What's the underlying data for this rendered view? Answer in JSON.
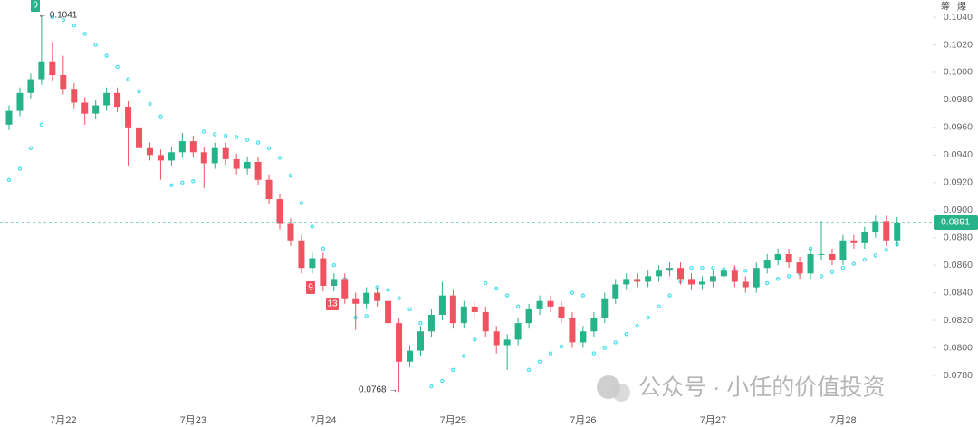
{
  "chart_data": {
    "type": "candlestick",
    "up_color": "#26b38a",
    "down_color": "#ef5360",
    "sar_color": "#4fe0ee",
    "ylim": [
      0.07603,
      0.10525
    ],
    "yticks": [
      {
        "value": 0.104,
        "label": "0.1040"
      },
      {
        "value": 0.102,
        "label": "0.1020"
      },
      {
        "value": 0.1,
        "label": "0.1000"
      },
      {
        "value": 0.098,
        "label": "0.0980"
      },
      {
        "value": 0.096,
        "label": "0.0960"
      },
      {
        "value": 0.094,
        "label": "0.0940"
      },
      {
        "value": 0.092,
        "label": "0.0920"
      },
      {
        "value": 0.09,
        "label": "0.0900"
      },
      {
        "value": 0.088,
        "label": "0.0880"
      },
      {
        "value": 0.086,
        "label": "0.0860"
      },
      {
        "value": 0.084,
        "label": "0.0840"
      },
      {
        "value": 0.082,
        "label": "0.0820"
      },
      {
        "value": 0.08,
        "label": "0.0800"
      },
      {
        "value": 0.078,
        "label": "0.0780"
      }
    ],
    "categories": [
      null,
      null,
      null,
      null,
      null,
      "7月22",
      null,
      null,
      null,
      null,
      null,
      null,
      null,
      null,
      null,
      null,
      null,
      "7月23",
      null,
      null,
      null,
      null,
      null,
      null,
      null,
      null,
      null,
      null,
      null,
      "7月24",
      null,
      null,
      null,
      null,
      null,
      null,
      null,
      null,
      null,
      null,
      null,
      "7月25",
      null,
      null,
      null,
      null,
      null,
      null,
      null,
      null,
      null,
      null,
      null,
      "7月26",
      null,
      null,
      null,
      null,
      null,
      null,
      null,
      null,
      null,
      null,
      null,
      "7月27",
      null,
      null,
      null,
      null,
      null,
      null,
      null,
      null,
      null,
      null,
      null,
      "7月28",
      null,
      null,
      null,
      null,
      null
    ],
    "ohlc": [
      [
        0.0962,
        0.0976,
        0.0958,
        0.0972
      ],
      [
        0.0972,
        0.0989,
        0.0968,
        0.0985
      ],
      [
        0.0985,
        0.0999,
        0.0981,
        0.0995
      ],
      [
        0.0995,
        0.1041,
        0.0991,
        0.1008
      ],
      [
        0.1008,
        0.1022,
        0.0994,
        0.0998
      ],
      [
        0.0998,
        0.1012,
        0.0984,
        0.0988
      ],
      [
        0.0988,
        0.0992,
        0.0974,
        0.0978
      ],
      [
        0.0978,
        0.0982,
        0.0962,
        0.097
      ],
      [
        0.097,
        0.098,
        0.0966,
        0.0976
      ],
      [
        0.0976,
        0.0989,
        0.0972,
        0.0985
      ],
      [
        0.0985,
        0.0989,
        0.0971,
        0.0975
      ],
      [
        0.0975,
        0.0979,
        0.0932,
        0.096
      ],
      [
        0.096,
        0.0964,
        0.0941,
        0.0945
      ],
      [
        0.0945,
        0.0949,
        0.0936,
        0.094
      ],
      [
        0.094,
        0.0944,
        0.0922,
        0.0936
      ],
      [
        0.0936,
        0.0946,
        0.0932,
        0.0942
      ],
      [
        0.0942,
        0.0956,
        0.0938,
        0.095
      ],
      [
        0.095,
        0.0954,
        0.0938,
        0.0942
      ],
      [
        0.0942,
        0.0946,
        0.0916,
        0.0934
      ],
      [
        0.0934,
        0.0949,
        0.093,
        0.0945
      ],
      [
        0.0945,
        0.0949,
        0.0933,
        0.0937
      ],
      [
        0.0937,
        0.0941,
        0.0926,
        0.093
      ],
      [
        0.093,
        0.0939,
        0.0926,
        0.0935
      ],
      [
        0.0935,
        0.0939,
        0.0918,
        0.0922
      ],
      [
        0.0922,
        0.0926,
        0.0904,
        0.0908
      ],
      [
        0.0908,
        0.0912,
        0.0886,
        0.089
      ],
      [
        0.089,
        0.0894,
        0.0874,
        0.0878
      ],
      [
        0.0878,
        0.0882,
        0.0854,
        0.0858
      ],
      [
        0.0858,
        0.0869,
        0.0854,
        0.0865
      ],
      [
        0.0865,
        0.0869,
        0.0841,
        0.0845
      ],
      [
        0.0845,
        0.0854,
        0.0841,
        0.085
      ],
      [
        0.085,
        0.0854,
        0.0832,
        0.0836
      ],
      [
        0.0836,
        0.084,
        0.0813,
        0.0832
      ],
      [
        0.0832,
        0.0844,
        0.0828,
        0.084
      ],
      [
        0.084,
        0.0844,
        0.083,
        0.0834
      ],
      [
        0.0834,
        0.0838,
        0.0814,
        0.0818
      ],
      [
        0.0818,
        0.0822,
        0.0768,
        0.079
      ],
      [
        0.079,
        0.0802,
        0.0786,
        0.0798
      ],
      [
        0.0798,
        0.0816,
        0.0794,
        0.0812
      ],
      [
        0.0812,
        0.0828,
        0.0808,
        0.0824
      ],
      [
        0.0824,
        0.0848,
        0.082,
        0.0838
      ],
      [
        0.0838,
        0.0842,
        0.0814,
        0.0818
      ],
      [
        0.0818,
        0.0834,
        0.0814,
        0.083
      ],
      [
        0.083,
        0.0834,
        0.0822,
        0.0826
      ],
      [
        0.0826,
        0.083,
        0.0808,
        0.0812
      ],
      [
        0.0812,
        0.0816,
        0.0796,
        0.0802
      ],
      [
        0.0802,
        0.081,
        0.0784,
        0.0806
      ],
      [
        0.0806,
        0.0822,
        0.0802,
        0.0818
      ],
      [
        0.0818,
        0.0832,
        0.0814,
        0.0828
      ],
      [
        0.0828,
        0.0838,
        0.0824,
        0.0834
      ],
      [
        0.0834,
        0.0838,
        0.0826,
        0.083
      ],
      [
        0.083,
        0.0834,
        0.0818,
        0.0822
      ],
      [
        0.0822,
        0.0826,
        0.08,
        0.0804
      ],
      [
        0.0804,
        0.0816,
        0.08,
        0.0812
      ],
      [
        0.0812,
        0.0826,
        0.0808,
        0.0822
      ],
      [
        0.0822,
        0.084,
        0.0818,
        0.0836
      ],
      [
        0.0836,
        0.085,
        0.0832,
        0.0846
      ],
      [
        0.0846,
        0.0854,
        0.0842,
        0.085
      ],
      [
        0.085,
        0.0854,
        0.0844,
        0.0848
      ],
      [
        0.0848,
        0.0856,
        0.0844,
        0.0852
      ],
      [
        0.0852,
        0.086,
        0.0848,
        0.0856
      ],
      [
        0.0856,
        0.0862,
        0.0852,
        0.0858
      ],
      [
        0.0858,
        0.0862,
        0.0846,
        0.085
      ],
      [
        0.085,
        0.0854,
        0.0842,
        0.0846
      ],
      [
        0.0846,
        0.0852,
        0.0842,
        0.0848
      ],
      [
        0.0848,
        0.0856,
        0.0844,
        0.0852
      ],
      [
        0.0852,
        0.086,
        0.0848,
        0.0856
      ],
      [
        0.0856,
        0.086,
        0.0844,
        0.0848
      ],
      [
        0.0848,
        0.0852,
        0.084,
        0.0844
      ],
      [
        0.0844,
        0.0862,
        0.084,
        0.0858
      ],
      [
        0.0858,
        0.0868,
        0.0854,
        0.0864
      ],
      [
        0.0864,
        0.0872,
        0.086,
        0.0868
      ],
      [
        0.0868,
        0.0872,
        0.0858,
        0.0862
      ],
      [
        0.0862,
        0.0866,
        0.085,
        0.0854
      ],
      [
        0.0854,
        0.0872,
        0.085,
        0.0868
      ],
      [
        0.0868,
        0.0892,
        0.0864,
        0.0868
      ],
      [
        0.0868,
        0.0872,
        0.086,
        0.0864
      ],
      [
        0.0864,
        0.0882,
        0.086,
        0.0878
      ],
      [
        0.0878,
        0.0882,
        0.0872,
        0.0876
      ],
      [
        0.0876,
        0.0888,
        0.0872,
        0.0884
      ],
      [
        0.0884,
        0.0896,
        0.088,
        0.0892
      ],
      [
        0.0892,
        0.0896,
        0.0874,
        0.0878
      ],
      [
        0.0878,
        0.0895,
        0.0874,
        0.0891
      ]
    ],
    "sar": [
      0.0922,
      0.093,
      0.0945,
      0.0962,
      0.104,
      0.1038,
      0.1034,
      0.1028,
      0.102,
      0.1012,
      0.1004,
      0.0995,
      0.0986,
      0.0977,
      0.0968,
      0.0918,
      0.092,
      0.0921,
      0.0957,
      0.0955,
      0.0954,
      0.0953,
      0.0951,
      0.0949,
      0.0945,
      0.0938,
      0.0925,
      0.0905,
      0.0888,
      0.0872,
      0.086,
      0.085,
      0.0822,
      0.0823,
      0.0844,
      0.0842,
      0.0836,
      0.0828,
      0.0818,
      0.0772,
      0.0776,
      0.0784,
      0.0794,
      0.0806,
      0.0847,
      0.0843,
      0.0838,
      0.083,
      0.0784,
      0.079,
      0.0796,
      0.0801,
      0.084,
      0.0838,
      0.0796,
      0.08,
      0.0804,
      0.081,
      0.0816,
      0.0822,
      0.083,
      0.0838,
      0.0848,
      0.0858,
      0.0858,
      0.0858,
      0.0857,
      0.0857,
      0.0856,
      0.0845,
      0.0847,
      0.085,
      0.0852,
      0.0854,
      0.0872,
      0.0852,
      0.0855,
      0.0858,
      0.0861,
      0.0864,
      0.0867,
      0.0871,
      0.0875
    ],
    "last_price": {
      "value": 0.0891,
      "label": "0.0891"
    },
    "high_label": "← 0.1041",
    "low_label": "0.0768 →",
    "markers": [
      "9",
      "9",
      "13"
    ],
    "corner_labels": [
      "筹",
      "爆"
    ],
    "watermark": "公众号 · 小任的价值投资"
  }
}
